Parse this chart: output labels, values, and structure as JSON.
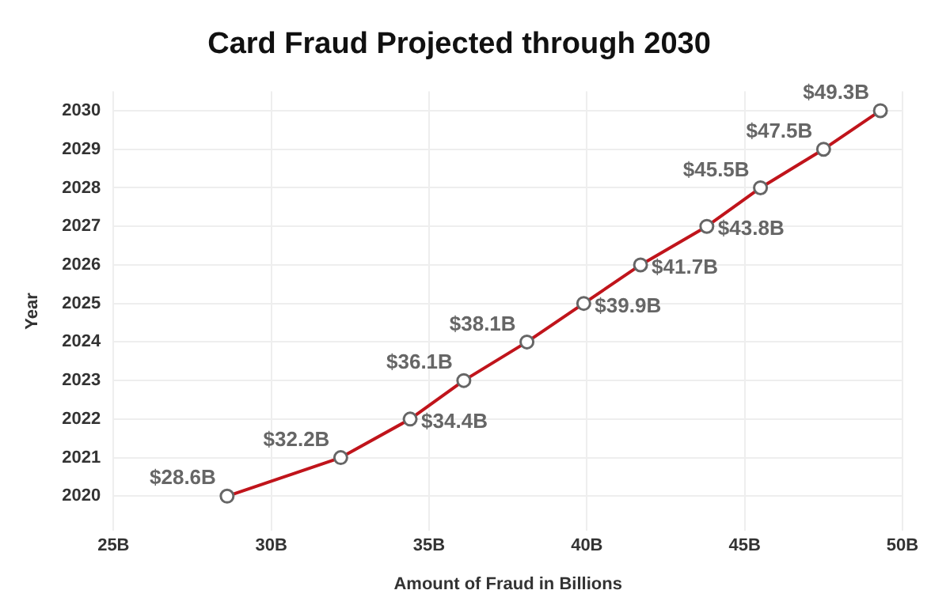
{
  "chart_data": {
    "type": "line",
    "title": "Card Fraud Projected through 2030",
    "xlabel": "Amount of Fraud in Billions",
    "ylabel": "Year",
    "x": [
      28.6,
      32.2,
      34.4,
      36.1,
      38.1,
      39.9,
      41.7,
      43.8,
      45.5,
      47.5,
      49.3
    ],
    "values": [
      2020,
      2021,
      2022,
      2023,
      2024,
      2025,
      2026,
      2027,
      2028,
      2029,
      2030
    ],
    "annotations": [
      {
        "text": "$28.6B",
        "x": 28.6,
        "y": 2020
      },
      {
        "text": "$32.2B",
        "x": 32.2,
        "y": 2021
      },
      {
        "text": "$34.4B",
        "x": 34.4,
        "y": 2022
      },
      {
        "text": "$36.1B",
        "x": 36.1,
        "y": 2023
      },
      {
        "text": "$38.1B",
        "x": 38.1,
        "y": 2024
      },
      {
        "text": "$39.9B",
        "x": 39.9,
        "y": 2025
      },
      {
        "text": "$41.7B",
        "x": 41.7,
        "y": 2026
      },
      {
        "text": "$43.8B",
        "x": 43.8,
        "y": 2027
      },
      {
        "text": "$45.5B",
        "x": 45.5,
        "y": 2028
      },
      {
        "text": "$47.5B",
        "x": 47.5,
        "y": 2029
      },
      {
        "text": "$49.3B",
        "x": 49.3,
        "y": 2030
      }
    ],
    "color": "#c0141b",
    "marker": "circle",
    "line_style": "solid",
    "grid": true,
    "legend": false,
    "xlim": [
      25,
      50
    ],
    "xticks": [
      {
        "value": 25,
        "label": "25B"
      },
      {
        "value": 30,
        "label": "30B"
      },
      {
        "value": 35,
        "label": "35B"
      },
      {
        "value": 40,
        "label": "40B"
      },
      {
        "value": 45,
        "label": "45B"
      },
      {
        "value": 50,
        "label": "50B"
      }
    ],
    "ylim": [
      2019.1,
      2030.5
    ],
    "yticks": [
      2020,
      2021,
      2022,
      2023,
      2024,
      2025,
      2026,
      2027,
      2028,
      2029,
      2030
    ]
  }
}
